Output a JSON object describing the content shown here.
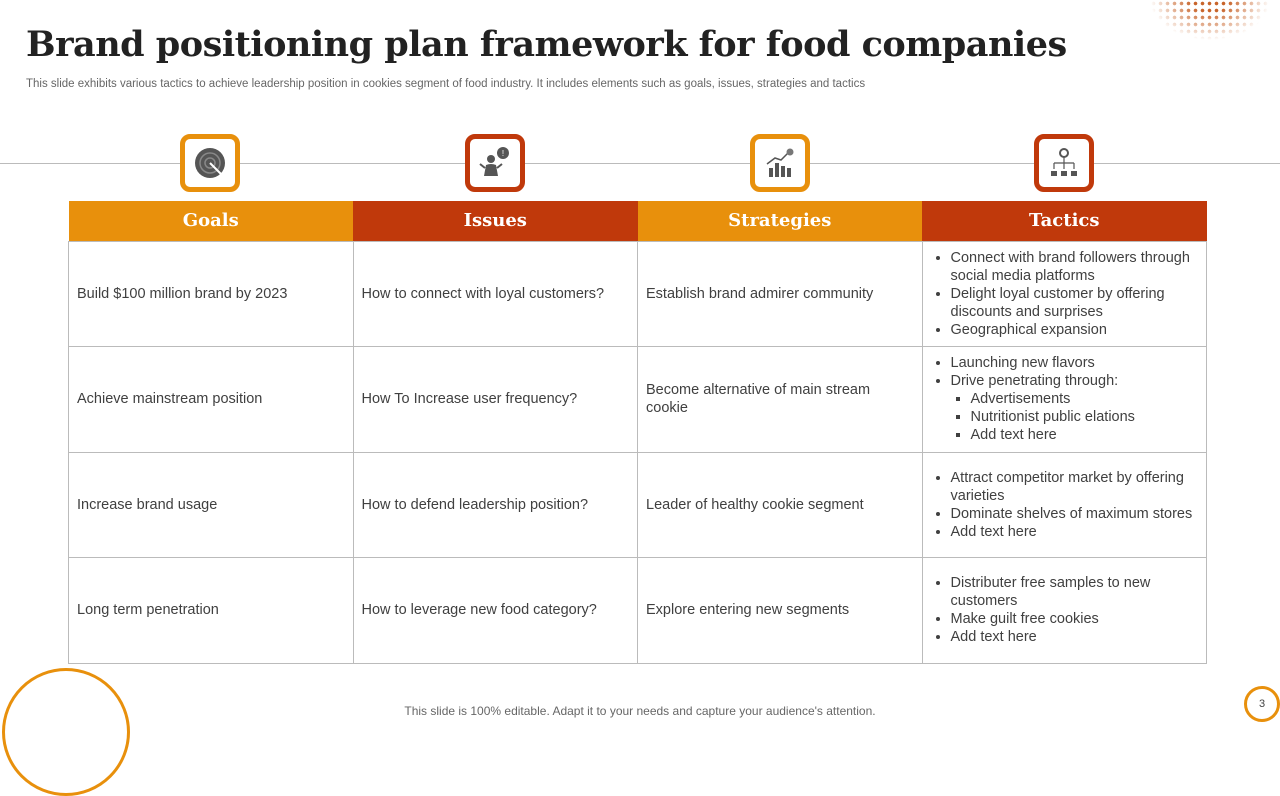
{
  "title": "Brand positioning plan framework for food companies",
  "subtitle": "This slide exhibits various tactics to achieve leadership position in cookies segment of food industry. It includes elements such as goals, issues, strategies and tactics",
  "colors": {
    "orange": "#E8900C",
    "red": "#C0390B"
  },
  "headers": [
    "Goals",
    "Issues",
    "Strategies",
    "Tactics"
  ],
  "icons": [
    "target-icon",
    "person-question-icon",
    "growth-chart-icon",
    "process-hierarchy-icon"
  ],
  "rows": [
    {
      "goal": "Build $100 million brand by 2023",
      "issue": "How to connect with loyal customers?",
      "strategy": "Establish brand admirer community",
      "tactics": [
        "Connect with brand followers through social media platforms",
        "Delight loyal customer by offering discounts and surprises",
        "Geographical expansion"
      ]
    },
    {
      "goal": "Achieve mainstream position",
      "issue": "How To Increase user frequency?",
      "strategy": "Become alternative of main stream cookie",
      "tactics": [
        "Launching new flavors",
        "Drive penetrating through:"
      ],
      "subtactics": [
        "Advertisements",
        "Nutritionist public elations",
        "Add text here"
      ]
    },
    {
      "goal": "Increase brand usage",
      "issue": "How to defend leadership position?",
      "strategy": "Leader of healthy cookie segment",
      "tactics": [
        "Attract competitor market by offering varieties",
        "Dominate shelves of maximum stores",
        "Add text here"
      ]
    },
    {
      "goal": "Long term penetration",
      "issue": "How to leverage new food category?",
      "strategy": "Explore entering new segments",
      "tactics": [
        "Distributer free samples to new customers",
        "Make guilt free cookies",
        "Add text here"
      ]
    }
  ],
  "footer": "This slide is 100% editable. Adapt it to your needs and capture your audience's attention.",
  "page_number": "3"
}
